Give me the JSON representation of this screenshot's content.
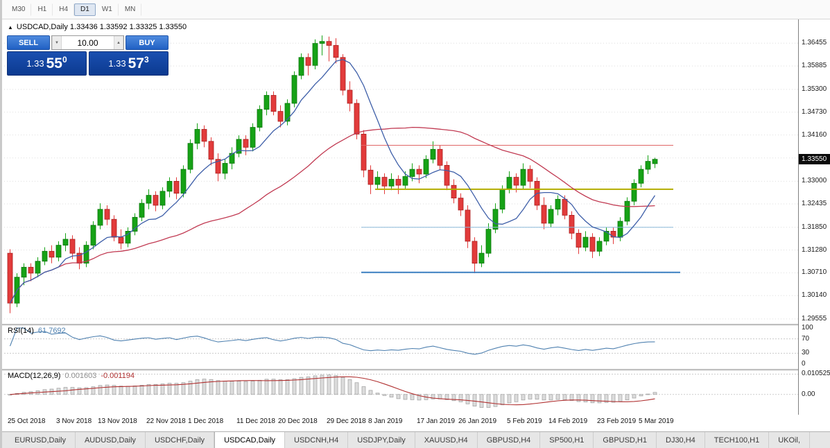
{
  "toolbar": {
    "timeframes": [
      {
        "label": "M30",
        "active": false
      },
      {
        "label": "H1",
        "active": false
      },
      {
        "label": "H4",
        "active": false
      },
      {
        "label": "D1",
        "active": true
      },
      {
        "label": "W1",
        "active": false
      },
      {
        "label": "MN",
        "active": false
      }
    ]
  },
  "ohlc_header": {
    "toggle_icon": "▲",
    "text": "USDCAD,Daily 1.33436 1.33592 1.33325 1.33550"
  },
  "trade_panel": {
    "sell_label": "SELL",
    "buy_label": "BUY",
    "volume": "10.00",
    "spinner_down": "▼",
    "spinner_up": "▲",
    "sell_price": {
      "big": "1.33",
      "mid": "55",
      "sup": "0"
    },
    "buy_price": {
      "big": "1.33",
      "mid": "57",
      "sup": "3"
    }
  },
  "indicators": {
    "rsi_name": "RSI(14)",
    "rsi_value": "61.7692",
    "macd_name": "MACD(12,26,9)",
    "macd_main_value": "0.001603",
    "macd_signal_value": "-0.001194"
  },
  "tabs": [
    {
      "label": "EURUSD,Daily",
      "active": false
    },
    {
      "label": "AUDUSD,Daily",
      "active": false
    },
    {
      "label": "USDCHF,Daily",
      "active": false
    },
    {
      "label": "USDCAD,Daily",
      "active": true
    },
    {
      "label": "USDCNH,H4",
      "active": false
    },
    {
      "label": "USDJPY,Daily",
      "active": false
    },
    {
      "label": "XAUUSD,H4",
      "active": false
    },
    {
      "label": "GBPUSD,H4",
      "active": false
    },
    {
      "label": "SP500,H1",
      "active": false
    },
    {
      "label": "GBPUSD,H1",
      "active": false
    },
    {
      "label": "DJ30,H4",
      "active": false
    },
    {
      "label": "TECH100,H1",
      "active": false
    },
    {
      "label": "UKOil,",
      "active": false
    }
  ],
  "chart_data": {
    "type": "candlestick",
    "symbol": "USDCAD",
    "timeframe": "Daily",
    "current_price": "1.33550",
    "current_price_value": 1.3355,
    "ylim": [
      1.2945,
      1.3705
    ],
    "up_color": "#16a216",
    "up_border": "#0b760b",
    "down_color": "#e23b3b",
    "down_border": "#aa1f1f",
    "ma_fast": {
      "period": 8,
      "color": "#3d5ea8"
    },
    "ma_slow": {
      "period": 34,
      "color": "#c13a52"
    },
    "price_axis_labels": [
      {
        "p": 1.36455,
        "t": "1.36455"
      },
      {
        "p": 1.35885,
        "t": "1.35885"
      },
      {
        "p": 1.353,
        "t": "1.35300"
      },
      {
        "p": 1.3473,
        "t": "1.34730"
      },
      {
        "p": 1.3416,
        "t": "1.34160"
      },
      {
        "p": 1.33585,
        "t": ""
      },
      {
        "p": 1.33,
        "t": "1.33000"
      },
      {
        "p": 1.32435,
        "t": "1.32435"
      },
      {
        "p": 1.3185,
        "t": "1.31850"
      },
      {
        "p": 1.3128,
        "t": "1.31280"
      },
      {
        "p": 1.3071,
        "t": "1.30710"
      },
      {
        "p": 1.3014,
        "t": "1.30140"
      },
      {
        "p": 1.29555,
        "t": "1.29555"
      }
    ],
    "hlines": [
      {
        "price": 1.339,
        "color": "#e06666",
        "width": 1,
        "from": 51,
        "to": 96
      },
      {
        "price": 1.328,
        "color": "#b3ad00",
        "width": 2,
        "from": 53,
        "to": 96
      },
      {
        "price": 1.3185,
        "color": "#8ab8d8",
        "width": 1,
        "from": 51,
        "to": 96
      },
      {
        "price": 1.3072,
        "color": "#3a7fc1",
        "width": 2,
        "from": 51,
        "to": 97
      }
    ],
    "x_ticks": [
      {
        "i": 0,
        "t": "25 Oct 2018"
      },
      {
        "i": 7,
        "t": "3 Nov 2018"
      },
      {
        "i": 13,
        "t": "13 Nov 2018"
      },
      {
        "i": 20,
        "t": "22 Nov 2018"
      },
      {
        "i": 26,
        "t": "1 Dec 2018"
      },
      {
        "i": 33,
        "t": "11 Dec 2018"
      },
      {
        "i": 39,
        "t": "20 Dec 2018"
      },
      {
        "i": 46,
        "t": "29 Dec 2018"
      },
      {
        "i": 52,
        "t": "8 Jan 2019"
      },
      {
        "i": 59,
        "t": "17 Jan 2019"
      },
      {
        "i": 65,
        "t": "26 Jan 2019"
      },
      {
        "i": 72,
        "t": "5 Feb 2019"
      },
      {
        "i": 78,
        "t": "14 Feb 2019"
      },
      {
        "i": 85,
        "t": "23 Feb 2019"
      },
      {
        "i": 91,
        "t": "5 Mar 2019"
      }
    ],
    "rsi": {
      "period": 14,
      "color": "#4f81b0",
      "levels": [
        100,
        70,
        30,
        0
      ],
      "dashed_levels": [
        70,
        30
      ]
    },
    "macd": {
      "fast": 12,
      "slow": 26,
      "signal": 9,
      "ylim": [
        -0.0105,
        0.0125
      ],
      "hist_fill": "#dcdcdc",
      "hist_stroke": "#9e9e9e",
      "signal_color": "#b03030",
      "axis_labels": [
        {
          "v": 0.010525,
          "t": "0.010525"
        },
        {
          "v": 0,
          "t": "0.00"
        }
      ]
    },
    "ohlc": [
      [
        1.312,
        1.313,
        1.297,
        1.2995
      ],
      [
        1.2995,
        1.307,
        1.2985,
        1.306
      ],
      [
        1.306,
        1.3095,
        1.304,
        1.3085
      ],
      [
        1.3085,
        1.3095,
        1.305,
        1.307
      ],
      [
        1.307,
        1.311,
        1.306,
        1.31
      ],
      [
        1.31,
        1.3135,
        1.309,
        1.3125
      ],
      [
        1.3125,
        1.314,
        1.3095,
        1.311
      ],
      [
        1.311,
        1.315,
        1.31,
        1.314
      ],
      [
        1.314,
        1.317,
        1.3125,
        1.3155
      ],
      [
        1.3155,
        1.3165,
        1.3105,
        1.312
      ],
      [
        1.312,
        1.3135,
        1.308,
        1.3095
      ],
      [
        1.3095,
        1.315,
        1.3085,
        1.314
      ],
      [
        1.314,
        1.32,
        1.313,
        1.319
      ],
      [
        1.319,
        1.3245,
        1.318,
        1.323
      ],
      [
        1.323,
        1.324,
        1.319,
        1.3205
      ],
      [
        1.3205,
        1.3215,
        1.315,
        1.316
      ],
      [
        1.316,
        1.318,
        1.313,
        1.3145
      ],
      [
        1.3145,
        1.3185,
        1.3135,
        1.3175
      ],
      [
        1.3175,
        1.322,
        1.3165,
        1.321
      ],
      [
        1.321,
        1.3255,
        1.32,
        1.3245
      ],
      [
        1.3245,
        1.328,
        1.323,
        1.3265
      ],
      [
        1.3265,
        1.3275,
        1.3225,
        1.324
      ],
      [
        1.324,
        1.3285,
        1.323,
        1.3275
      ],
      [
        1.3275,
        1.331,
        1.326,
        1.33
      ],
      [
        1.33,
        1.331,
        1.3255,
        1.327
      ],
      [
        1.327,
        1.334,
        1.326,
        1.333
      ],
      [
        1.333,
        1.3405,
        1.332,
        1.3395
      ],
      [
        1.3395,
        1.3445,
        1.338,
        1.343
      ],
      [
        1.343,
        1.344,
        1.3385,
        1.34
      ],
      [
        1.34,
        1.341,
        1.334,
        1.3355
      ],
      [
        1.3355,
        1.337,
        1.33,
        1.332
      ],
      [
        1.332,
        1.3355,
        1.3305,
        1.3345
      ],
      [
        1.3345,
        1.3385,
        1.333,
        1.337
      ],
      [
        1.337,
        1.3415,
        1.336,
        1.3405
      ],
      [
        1.3405,
        1.3415,
        1.3365,
        1.3385
      ],
      [
        1.3385,
        1.3445,
        1.3375,
        1.3435
      ],
      [
        1.3435,
        1.349,
        1.3425,
        1.348
      ],
      [
        1.348,
        1.3525,
        1.3465,
        1.3515
      ],
      [
        1.3515,
        1.3525,
        1.3465,
        1.3475
      ],
      [
        1.3475,
        1.349,
        1.3435,
        1.345
      ],
      [
        1.345,
        1.3505,
        1.344,
        1.3495
      ],
      [
        1.3495,
        1.3575,
        1.3485,
        1.3565
      ],
      [
        1.3565,
        1.362,
        1.3555,
        1.361
      ],
      [
        1.361,
        1.362,
        1.3565,
        1.359
      ],
      [
        1.359,
        1.3655,
        1.358,
        1.3645
      ],
      [
        1.3645,
        1.3665,
        1.3615,
        1.365
      ],
      [
        1.365,
        1.3662,
        1.36,
        1.364
      ],
      [
        1.364,
        1.3658,
        1.3595,
        1.361
      ],
      [
        1.361,
        1.3618,
        1.3515,
        1.3528
      ],
      [
        1.3528,
        1.355,
        1.3475,
        1.3495
      ],
      [
        1.3495,
        1.3505,
        1.3405,
        1.3418
      ],
      [
        1.3418,
        1.3428,
        1.331,
        1.3328
      ],
      [
        1.3328,
        1.334,
        1.3268,
        1.3292
      ],
      [
        1.3292,
        1.3325,
        1.328,
        1.331
      ],
      [
        1.331,
        1.332,
        1.3268,
        1.3288
      ],
      [
        1.3288,
        1.332,
        1.3278,
        1.3305
      ],
      [
        1.3305,
        1.3315,
        1.3268,
        1.329
      ],
      [
        1.329,
        1.3325,
        1.328,
        1.3312
      ],
      [
        1.3312,
        1.3345,
        1.33,
        1.333
      ],
      [
        1.333,
        1.334,
        1.3295,
        1.3318
      ],
      [
        1.3318,
        1.3365,
        1.3308,
        1.3355
      ],
      [
        1.3355,
        1.34,
        1.3345,
        1.338
      ],
      [
        1.338,
        1.339,
        1.3328,
        1.334
      ],
      [
        1.334,
        1.335,
        1.3278,
        1.329
      ],
      [
        1.329,
        1.3305,
        1.3245,
        1.3258
      ],
      [
        1.3258,
        1.327,
        1.3213,
        1.3228
      ],
      [
        1.3228,
        1.324,
        1.3133,
        1.315
      ],
      [
        1.315,
        1.316,
        1.307,
        1.3095
      ],
      [
        1.3095,
        1.314,
        1.3085,
        1.312
      ],
      [
        1.312,
        1.3195,
        1.311,
        1.318
      ],
      [
        1.318,
        1.3245,
        1.317,
        1.323
      ],
      [
        1.323,
        1.329,
        1.322,
        1.328
      ],
      [
        1.328,
        1.3325,
        1.327,
        1.331
      ],
      [
        1.331,
        1.332,
        1.3272,
        1.329
      ],
      [
        1.329,
        1.3345,
        1.328,
        1.333
      ],
      [
        1.333,
        1.334,
        1.3283,
        1.33
      ],
      [
        1.33,
        1.331,
        1.3228,
        1.324
      ],
      [
        1.324,
        1.326,
        1.318,
        1.3195
      ],
      [
        1.3195,
        1.324,
        1.3185,
        1.323
      ],
      [
        1.323,
        1.3265,
        1.3215,
        1.3255
      ],
      [
        1.3255,
        1.3265,
        1.3205,
        1.3215
      ],
      [
        1.3215,
        1.3225,
        1.3155,
        1.317
      ],
      [
        1.317,
        1.318,
        1.3118,
        1.3135
      ],
      [
        1.3135,
        1.3175,
        1.3125,
        1.316
      ],
      [
        1.316,
        1.317,
        1.3108,
        1.3125
      ],
      [
        1.3125,
        1.316,
        1.3113,
        1.315
      ],
      [
        1.315,
        1.3185,
        1.314,
        1.3175
      ],
      [
        1.3175,
        1.3185,
        1.3143,
        1.316
      ],
      [
        1.316,
        1.321,
        1.315,
        1.32
      ],
      [
        1.32,
        1.326,
        1.319,
        1.325
      ],
      [
        1.325,
        1.3305,
        1.324,
        1.3295
      ],
      [
        1.3295,
        1.334,
        1.3285,
        1.333
      ],
      [
        1.333,
        1.3365,
        1.3318,
        1.335
      ],
      [
        1.3344,
        1.3359,
        1.3333,
        1.3355
      ]
    ]
  }
}
